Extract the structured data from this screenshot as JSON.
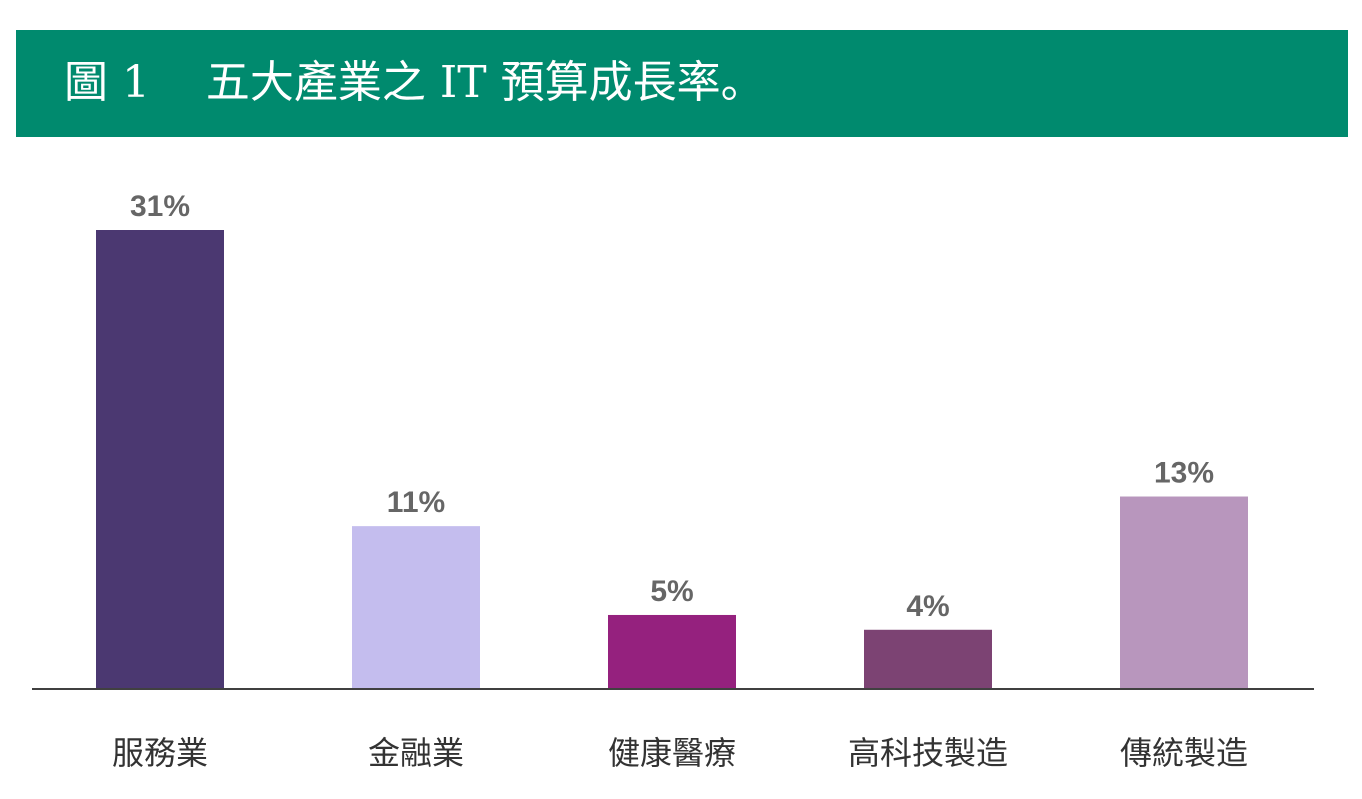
{
  "header": {
    "title": "圖 1    五大產業之 IT 預算成長率。",
    "bg_color": "#008a6e"
  },
  "chart_data": {
    "type": "bar",
    "title": "圖 1    五大產業之 IT 預算成長率。",
    "xlabel": "",
    "ylabel": "",
    "categories": [
      "服務業",
      "金融業",
      "健康醫療",
      "高科技製造",
      "傳統製造"
    ],
    "values": [
      31,
      11,
      5,
      4,
      13
    ],
    "value_labels": [
      "31%",
      "11%",
      "5%",
      "4%",
      "13%"
    ],
    "colors": [
      "#4b3871",
      "#c4bdee",
      "#95217e",
      "#7c4373",
      "#b896bd"
    ],
    "ylim": [
      0,
      31
    ],
    "grid": false,
    "legend": "none"
  }
}
